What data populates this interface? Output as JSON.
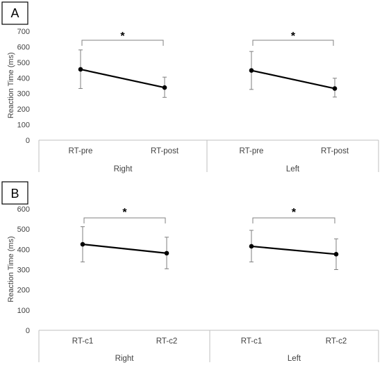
{
  "chart_data": [
    {
      "type": "line",
      "panel_label": "A",
      "ylabel": "Reaction Time (ms)",
      "ylim": [
        0,
        700
      ],
      "yticks": [
        "0",
        "100",
        "200",
        "300",
        "400",
        "500",
        "600",
        "700"
      ],
      "grid": false,
      "groups": [
        {
          "name": "Right",
          "categories": [
            "RT-pre",
            "RT-post"
          ],
          "values": [
            455,
            338
          ],
          "error_upper": [
            580,
            405
          ],
          "error_lower": [
            332,
            275
          ],
          "significance": "*"
        },
        {
          "name": "Left",
          "categories": [
            "RT-pre",
            "RT-post"
          ],
          "values": [
            448,
            332
          ],
          "error_upper": [
            570,
            398
          ],
          "error_lower": [
            326,
            277
          ],
          "significance": "*"
        }
      ]
    },
    {
      "type": "line",
      "panel_label": "B",
      "ylabel": "Reaction Time (ms)",
      "ylim": [
        0,
        600
      ],
      "yticks": [
        "0",
        "100",
        "200",
        "300",
        "400",
        "500",
        "600"
      ],
      "grid": false,
      "groups": [
        {
          "name": "Right",
          "categories": [
            "RT-c1",
            "RT-c2"
          ],
          "values": [
            425,
            381
          ],
          "error_upper": [
            512,
            460
          ],
          "error_lower": [
            338,
            304
          ],
          "significance": "*"
        },
        {
          "name": "Left",
          "categories": [
            "RT-c1",
            "RT-c2"
          ],
          "values": [
            415,
            376
          ],
          "error_upper": [
            494,
            452
          ],
          "error_lower": [
            338,
            300
          ],
          "significance": "*"
        }
      ]
    }
  ]
}
